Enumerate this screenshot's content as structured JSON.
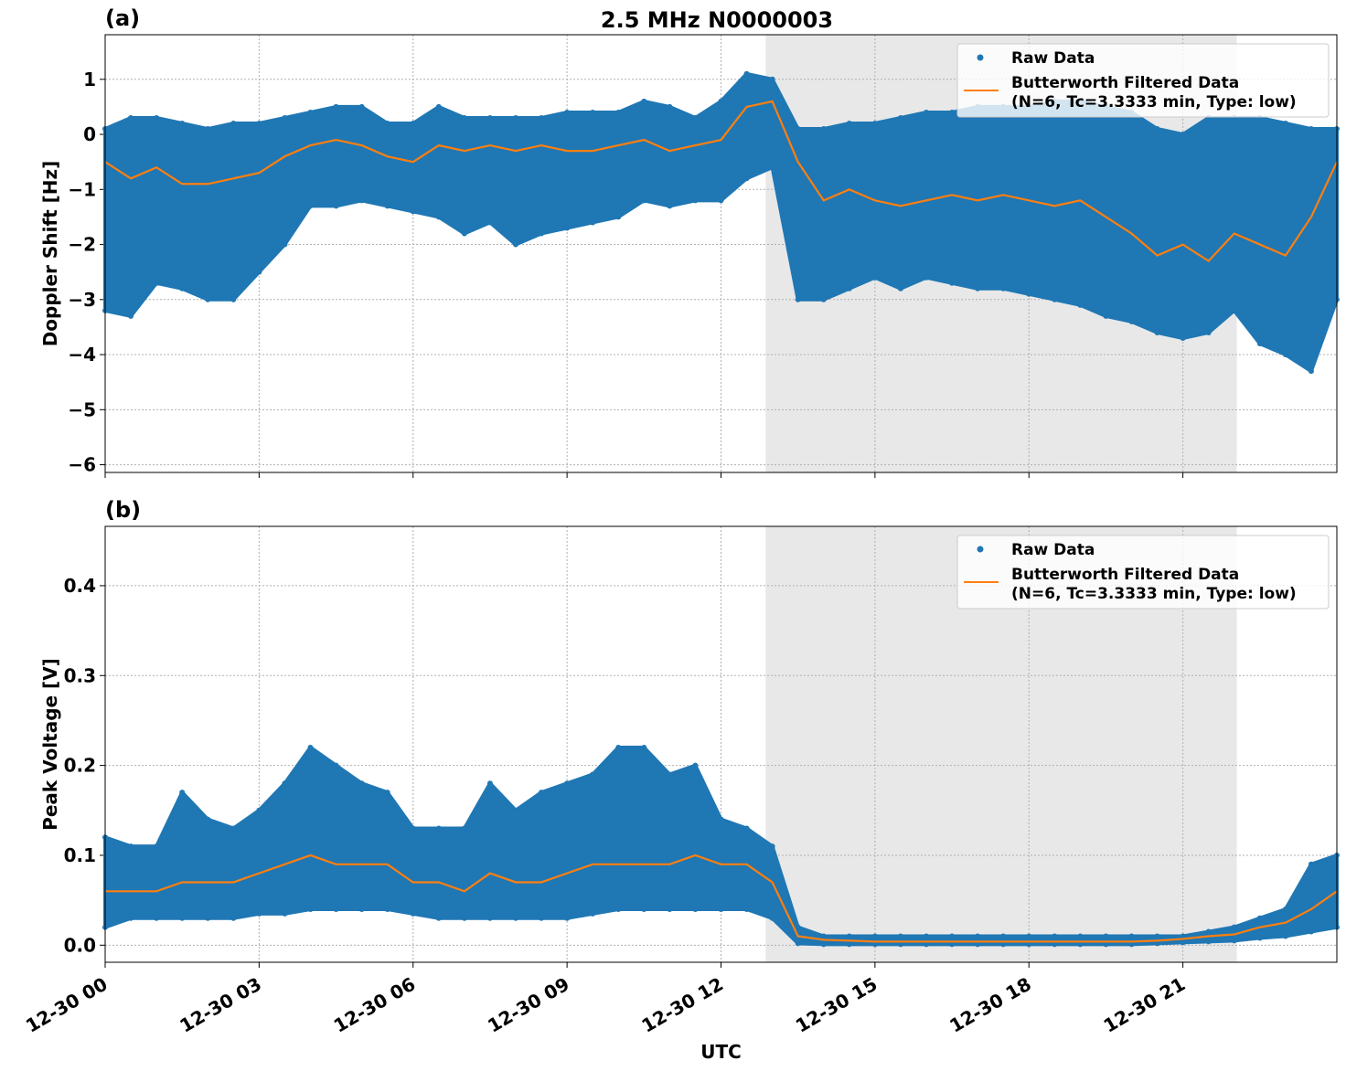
{
  "title": "2.5 MHz N0000003",
  "colors": {
    "raw": "#1f77b4",
    "filtered": "#ff7f0e",
    "shade": "#e8e8e8"
  },
  "chart_data": [
    {
      "panel_label": "(a)",
      "type": "scatter+line",
      "ylabel": "Doppler Shift [Hz]",
      "xlabel": "",
      "ylim": [
        -6.14,
        1.81
      ],
      "yticks": [
        1,
        0,
        -1,
        -2,
        -3,
        -4,
        -5,
        -6
      ],
      "ytick_labels": [
        "1",
        "0",
        "−1",
        "−2",
        "−3",
        "−4",
        "−5",
        "−6"
      ],
      "grid": true,
      "legend_position": "top-right",
      "legend": [
        "Raw Data",
        "Butterworth Filtered Data",
        "(N=6, Tc=3.3333 min, Type: low)"
      ],
      "shaded_interval_hours": [
        12.87,
        22.05
      ],
      "x_hours": [
        0,
        0.5,
        1,
        1.5,
        2,
        2.5,
        3,
        3.5,
        4,
        4.5,
        5,
        5.5,
        6,
        6.5,
        7,
        7.5,
        8,
        8.5,
        9,
        9.5,
        10,
        10.5,
        11,
        11.5,
        12,
        12.5,
        13,
        13.5,
        14,
        14.5,
        15,
        15.5,
        16,
        16.5,
        17,
        17.5,
        18,
        18.5,
        19,
        19.5,
        20,
        20.5,
        21,
        21.5,
        22,
        22.5,
        23,
        23.5,
        24
      ],
      "raw_upper": [
        0.1,
        0.3,
        0.3,
        0.2,
        0.1,
        0.2,
        0.2,
        0.3,
        0.4,
        0.5,
        0.5,
        0.2,
        0.2,
        0.5,
        0.3,
        0.3,
        0.3,
        0.3,
        0.4,
        0.4,
        0.4,
        0.6,
        0.5,
        0.3,
        0.6,
        1.1,
        1.0,
        0.1,
        0.1,
        0.2,
        0.2,
        0.3,
        0.4,
        0.4,
        0.5,
        0.5,
        0.5,
        0.6,
        0.6,
        0.5,
        0.4,
        0.1,
        0.0,
        0.3,
        0.3,
        0.3,
        0.2,
        0.1,
        0.1
      ],
      "raw_lower": [
        -3.2,
        -3.3,
        -2.7,
        -2.8,
        -3.0,
        -3.0,
        -2.5,
        -2.0,
        -1.3,
        -1.3,
        -1.2,
        -1.3,
        -1.4,
        -1.5,
        -1.8,
        -1.6,
        -2.0,
        -1.8,
        -1.7,
        -1.6,
        -1.5,
        -1.2,
        -1.3,
        -1.2,
        -1.2,
        -0.8,
        -0.6,
        -3.0,
        -3.0,
        -2.8,
        -2.6,
        -2.8,
        -2.6,
        -2.7,
        -2.8,
        -2.8,
        -2.9,
        -3.0,
        -3.1,
        -3.3,
        -3.4,
        -3.6,
        -3.7,
        -3.6,
        -3.2,
        -3.8,
        -4.0,
        -4.3,
        -3.0
      ],
      "filtered": [
        -0.5,
        -0.8,
        -0.6,
        -0.9,
        -0.9,
        -0.8,
        -0.7,
        -0.4,
        -0.2,
        -0.1,
        -0.2,
        -0.4,
        -0.5,
        -0.2,
        -0.3,
        -0.2,
        -0.3,
        -0.2,
        -0.3,
        -0.3,
        -0.2,
        -0.1,
        -0.3,
        -0.2,
        -0.1,
        0.5,
        0.6,
        -0.5,
        -1.2,
        -1.0,
        -1.2,
        -1.3,
        -1.2,
        -1.1,
        -1.2,
        -1.1,
        -1.2,
        -1.3,
        -1.2,
        -1.5,
        -1.8,
        -2.2,
        -2.0,
        -2.3,
        -1.8,
        -2.0,
        -2.2,
        -1.5,
        -0.5
      ]
    },
    {
      "panel_label": "(b)",
      "type": "scatter+line",
      "ylabel": "Peak Voltage [V]",
      "xlabel": "UTC",
      "ylim": [
        -0.019,
        0.466
      ],
      "yticks": [
        0.0,
        0.1,
        0.2,
        0.3,
        0.4
      ],
      "ytick_labels": [
        "0.0",
        "0.1",
        "0.2",
        "0.3",
        "0.4"
      ],
      "xticks_hours": [
        0,
        3,
        6,
        9,
        12,
        15,
        18,
        21
      ],
      "xtick_labels": [
        "12-30 00",
        "12-30 03",
        "12-30 06",
        "12-30 09",
        "12-30 12",
        "12-30 15",
        "12-30 18",
        "12-30 21"
      ],
      "grid": true,
      "legend_position": "top-right",
      "legend": [
        "Raw Data",
        "Butterworth Filtered Data",
        "(N=6, Tc=3.3333 min, Type: low)"
      ],
      "shaded_interval_hours": [
        12.87,
        22.05
      ],
      "x_hours": [
        0,
        0.5,
        1,
        1.5,
        2,
        2.5,
        3,
        3.5,
        4,
        4.5,
        5,
        5.5,
        6,
        6.5,
        7,
        7.5,
        8,
        8.5,
        9,
        9.5,
        10,
        10.5,
        11,
        11.5,
        12,
        12.5,
        13,
        13.5,
        14,
        14.5,
        15,
        15.5,
        16,
        16.5,
        17,
        17.5,
        18,
        18.5,
        19,
        19.5,
        20,
        20.5,
        21,
        21.5,
        22,
        22.5,
        23,
        23.5,
        24
      ],
      "raw_upper": [
        0.12,
        0.11,
        0.11,
        0.17,
        0.14,
        0.13,
        0.15,
        0.18,
        0.22,
        0.2,
        0.18,
        0.17,
        0.13,
        0.13,
        0.13,
        0.18,
        0.15,
        0.17,
        0.18,
        0.19,
        0.22,
        0.22,
        0.19,
        0.2,
        0.14,
        0.13,
        0.11,
        0.02,
        0.01,
        0.01,
        0.01,
        0.01,
        0.01,
        0.01,
        0.01,
        0.01,
        0.01,
        0.01,
        0.01,
        0.01,
        0.01,
        0.01,
        0.01,
        0.015,
        0.02,
        0.03,
        0.04,
        0.09,
        0.1
      ],
      "raw_lower": [
        0.02,
        0.03,
        0.03,
        0.03,
        0.03,
        0.03,
        0.035,
        0.035,
        0.04,
        0.04,
        0.04,
        0.04,
        0.035,
        0.03,
        0.03,
        0.03,
        0.03,
        0.03,
        0.03,
        0.035,
        0.04,
        0.04,
        0.04,
        0.04,
        0.04,
        0.04,
        0.03,
        0.002,
        0.001,
        0.001,
        0.001,
        0.001,
        0.001,
        0.001,
        0.001,
        0.001,
        0.001,
        0.001,
        0.001,
        0.001,
        0.001,
        0.002,
        0.003,
        0.004,
        0.005,
        0.008,
        0.01,
        0.015,
        0.02
      ],
      "filtered": [
        0.06,
        0.06,
        0.06,
        0.07,
        0.07,
        0.07,
        0.08,
        0.09,
        0.1,
        0.09,
        0.09,
        0.09,
        0.07,
        0.07,
        0.06,
        0.08,
        0.07,
        0.07,
        0.08,
        0.09,
        0.09,
        0.09,
        0.09,
        0.1,
        0.09,
        0.09,
        0.07,
        0.01,
        0.006,
        0.005,
        0.004,
        0.004,
        0.004,
        0.004,
        0.004,
        0.004,
        0.004,
        0.004,
        0.004,
        0.004,
        0.004,
        0.005,
        0.007,
        0.01,
        0.012,
        0.02,
        0.025,
        0.04,
        0.06
      ]
    }
  ]
}
